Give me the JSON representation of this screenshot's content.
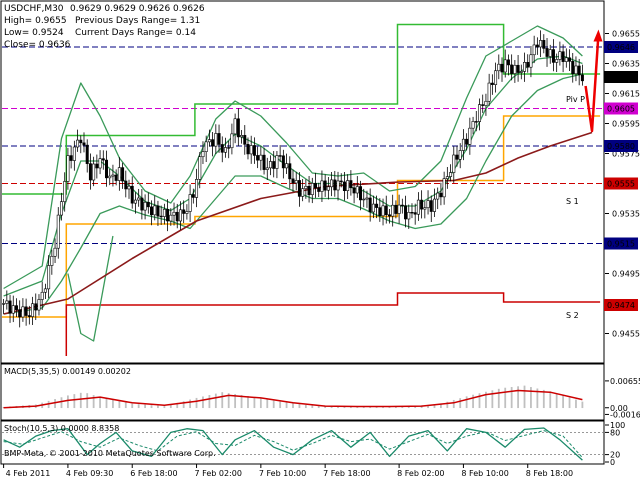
{
  "chart_data": {
    "type": "candlestick",
    "symbol_header": "USDCHF,M30",
    "ohlc_header": "0.9629 0.9629 0.9626 0.9626",
    "info": {
      "high": "High= 0.9655",
      "low": "Low= 0.9524",
      "close": "Close= 0.9636",
      "prev_range": "Previous Days Range= 1.31",
      "curr_range": "Current Days Range= 0.14"
    },
    "price_axis": {
      "ylim": [
        0.9436,
        0.9676
      ],
      "ticks": [
        "0.9655",
        "0.9635",
        "0.9615",
        "0.9595",
        "0.9575",
        "0.9535",
        "0.9495",
        "0.9455"
      ],
      "tick_values": [
        0.9655,
        0.9635,
        0.9615,
        0.9595,
        0.9575,
        0.9535,
        0.9495,
        0.9455
      ]
    },
    "price_labels": [
      {
        "text": "0.9646",
        "value": 0.9646,
        "bg": "#000080"
      },
      {
        "text": "0.9626",
        "value": 0.9626,
        "bg": "#000000"
      },
      {
        "text": "0.9605",
        "value": 0.9605,
        "bg": "#d000d0"
      },
      {
        "text": "0.9580",
        "value": 0.958,
        "bg": "#000080"
      },
      {
        "text": "0.9555",
        "value": 0.9555,
        "bg": "#cc0000"
      },
      {
        "text": "0.9515",
        "value": 0.9515,
        "bg": "#000080"
      },
      {
        "text": "0.9474",
        "value": 0.9474,
        "bg": "#cc0000"
      }
    ],
    "hlines": [
      {
        "value": 0.9646,
        "color": "#000080"
      },
      {
        "value": 0.9605,
        "color": "#d000d0"
      },
      {
        "value": 0.958,
        "color": "#000080"
      },
      {
        "value": 0.9555,
        "color": "#cc0000"
      },
      {
        "value": 0.9515,
        "color": "#000080"
      }
    ],
    "pivot_labels": [
      "Piv P",
      "S 1",
      "S 2"
    ],
    "levels": [
      {
        "name": "green-upper",
        "color": "#33bb33",
        "steps": [
          [
            0,
            0.9548
          ],
          [
            20,
            0.9548
          ],
          [
            20,
            0.9587
          ],
          [
            60,
            0.9587
          ],
          [
            60,
            0.9608
          ],
          [
            123,
            0.9608
          ],
          [
            123,
            0.9661
          ],
          [
            156,
            0.9661
          ],
          [
            156,
            0.9628
          ],
          [
            186,
            0.9628
          ]
        ]
      },
      {
        "name": "orange",
        "color": "#ffa500",
        "steps": [
          [
            0,
            0.9466
          ],
          [
            20,
            0.9466
          ],
          [
            20,
            0.9528
          ],
          [
            60,
            0.9528
          ],
          [
            60,
            0.9533
          ],
          [
            123,
            0.9533
          ],
          [
            123,
            0.9557
          ],
          [
            156,
            0.9557
          ],
          [
            156,
            0.96
          ],
          [
            186,
            0.96
          ]
        ]
      },
      {
        "name": "red",
        "color": "#cc0000",
        "steps": [
          [
            20,
            0.944
          ],
          [
            20,
            0.9474
          ],
          [
            60,
            0.9474
          ],
          [
            60,
            0.9474
          ],
          [
            123,
            0.9474
          ],
          [
            123,
            0.9482
          ],
          [
            156,
            0.9482
          ],
          [
            156,
            0.9476
          ],
          [
            186,
            0.9476
          ]
        ]
      }
    ],
    "ma_color": "#8b1a1a",
    "band_color": "#3a9a5a",
    "candle_color": "#000000",
    "forecast_color": "#ee0000",
    "macd": {
      "label": "MACD(5,35,5) 0.00149 0.00202",
      "ticks": [
        "0.00655",
        "0.00",
        "-0.00163"
      ],
      "tick_values": [
        0.00655,
        0.0,
        -0.00163
      ],
      "ylim": [
        -0.0025,
        0.0075
      ],
      "signal_color": "#cc0000",
      "hist_color": "#c0c0c0"
    },
    "stoch": {
      "label": "Stoch(10,5,3) 0.0000 8.8358",
      "ticks": [
        "100",
        "80",
        "20",
        "0"
      ],
      "tick_values": [
        100,
        80,
        20,
        0
      ],
      "ylim": [
        0,
        100
      ],
      "main_color": "#1a8a6a",
      "signal_color": "#1a8a6a"
    },
    "x_ticks": [
      "4 Feb 2011",
      "4 Feb 09:30",
      "6 Feb 18:00",
      "7 Feb 02:00",
      "7 Feb 10:00",
      "7 Feb 18:00",
      "8 Feb 02:00",
      "8 Feb 10:00",
      "8 Feb 18:00"
    ],
    "x_tick_index": [
      0,
      20,
      40,
      60,
      80,
      100,
      123,
      143,
      163
    ],
    "bar_count": 181,
    "close_path": [
      [
        0,
        0.9475
      ],
      [
        4,
        0.947
      ],
      [
        8,
        0.9468
      ],
      [
        12,
        0.948
      ],
      [
        16,
        0.9515
      ],
      [
        18,
        0.9545
      ],
      [
        20,
        0.957
      ],
      [
        24,
        0.9586
      ],
      [
        27,
        0.956
      ],
      [
        30,
        0.9572
      ],
      [
        33,
        0.9558
      ],
      [
        36,
        0.9562
      ],
      [
        40,
        0.9545
      ],
      [
        44,
        0.954
      ],
      [
        48,
        0.9535
      ],
      [
        52,
        0.9533
      ],
      [
        56,
        0.9535
      ],
      [
        59,
        0.9548
      ],
      [
        62,
        0.958
      ],
      [
        66,
        0.9585
      ],
      [
        69,
        0.9575
      ],
      [
        72,
        0.9595
      ],
      [
        75,
        0.958
      ],
      [
        78,
        0.9575
      ],
      [
        82,
        0.9565
      ],
      [
        86,
        0.9573
      ],
      [
        89,
        0.956
      ],
      [
        92,
        0.955
      ],
      [
        96,
        0.9552
      ],
      [
        100,
        0.9553
      ],
      [
        104,
        0.9555
      ],
      [
        108,
        0.9553
      ],
      [
        111,
        0.9547
      ],
      [
        114,
        0.954
      ],
      [
        117,
        0.9537
      ],
      [
        120,
        0.9535
      ],
      [
        123,
        0.954
      ],
      [
        126,
        0.9533
      ],
      [
        129,
        0.954
      ],
      [
        133,
        0.954
      ],
      [
        136,
        0.955
      ],
      [
        140,
        0.957
      ],
      [
        144,
        0.9585
      ],
      [
        147,
        0.96
      ],
      [
        150,
        0.9612
      ],
      [
        153,
        0.963
      ],
      [
        156,
        0.9635
      ],
      [
        159,
        0.963
      ],
      [
        162,
        0.9632
      ],
      [
        164,
        0.964
      ],
      [
        166,
        0.965
      ],
      [
        168,
        0.9645
      ],
      [
        171,
        0.9638
      ],
      [
        174,
        0.964
      ],
      [
        177,
        0.9632
      ],
      [
        180,
        0.9626
      ]
    ],
    "ma_path": [
      [
        0,
        0.9468
      ],
      [
        20,
        0.9478
      ],
      [
        40,
        0.9505
      ],
      [
        60,
        0.953
      ],
      [
        80,
        0.9545
      ],
      [
        100,
        0.9553
      ],
      [
        123,
        0.9556
      ],
      [
        140,
        0.9557
      ],
      [
        150,
        0.9562
      ],
      [
        160,
        0.9572
      ],
      [
        170,
        0.958
      ],
      [
        183,
        0.9589
      ]
    ],
    "band_up": [
      [
        0,
        0.9485
      ],
      [
        12,
        0.95
      ],
      [
        18,
        0.9585
      ],
      [
        24,
        0.9622
      ],
      [
        30,
        0.96
      ],
      [
        36,
        0.9572
      ],
      [
        44,
        0.955
      ],
      [
        52,
        0.9542
      ],
      [
        58,
        0.956
      ],
      [
        66,
        0.9598
      ],
      [
        72,
        0.961
      ],
      [
        80,
        0.96
      ],
      [
        88,
        0.9582
      ],
      [
        96,
        0.9562
      ],
      [
        104,
        0.956
      ],
      [
        112,
        0.9562
      ],
      [
        120,
        0.955
      ],
      [
        128,
        0.9553
      ],
      [
        136,
        0.957
      ],
      [
        144,
        0.9612
      ],
      [
        150,
        0.964
      ],
      [
        158,
        0.965
      ],
      [
        166,
        0.966
      ],
      [
        174,
        0.9652
      ],
      [
        180,
        0.964
      ]
    ],
    "band_mid": [
      [
        0,
        0.948
      ],
      [
        12,
        0.949
      ],
      [
        18,
        0.9535
      ],
      [
        24,
        0.957
      ],
      [
        30,
        0.957
      ],
      [
        36,
        0.956
      ],
      [
        44,
        0.9543
      ],
      [
        52,
        0.9537
      ],
      [
        58,
        0.9545
      ],
      [
        66,
        0.9575
      ],
      [
        72,
        0.9588
      ],
      [
        80,
        0.958
      ],
      [
        88,
        0.9567
      ],
      [
        96,
        0.9555
      ],
      [
        104,
        0.9555
      ],
      [
        112,
        0.955
      ],
      [
        120,
        0.954
      ],
      [
        128,
        0.954
      ],
      [
        136,
        0.955
      ],
      [
        144,
        0.9578
      ],
      [
        150,
        0.9605
      ],
      [
        158,
        0.9625
      ],
      [
        166,
        0.9638
      ],
      [
        174,
        0.964
      ],
      [
        180,
        0.9635
      ]
    ],
    "band_lo": [
      [
        0,
        0.9468
      ],
      [
        12,
        0.9472
      ],
      [
        18,
        0.949
      ],
      [
        24,
        0.9512
      ],
      [
        30,
        0.9535
      ],
      [
        36,
        0.954
      ],
      [
        44,
        0.9534
      ],
      [
        52,
        0.953
      ],
      [
        58,
        0.9525
      ],
      [
        66,
        0.9545
      ],
      [
        72,
        0.956
      ],
      [
        80,
        0.956
      ],
      [
        88,
        0.9552
      ],
      [
        96,
        0.9545
      ],
      [
        104,
        0.9545
      ],
      [
        112,
        0.9538
      ],
      [
        120,
        0.953
      ],
      [
        128,
        0.9525
      ],
      [
        136,
        0.9528
      ],
      [
        144,
        0.9545
      ],
      [
        150,
        0.957
      ],
      [
        158,
        0.96
      ],
      [
        166,
        0.9617
      ],
      [
        174,
        0.9625
      ],
      [
        180,
        0.9628
      ]
    ],
    "band_lo_dip": [
      [
        20,
        0.9495
      ],
      [
        24,
        0.9455
      ],
      [
        28,
        0.945
      ],
      [
        34,
        0.952
      ]
    ],
    "forecast_path": [
      [
        181,
        0.962
      ],
      [
        183,
        0.959
      ],
      [
        185,
        0.9655
      ]
    ],
    "macd_signal": [
      [
        0,
        0.0
      ],
      [
        10,
        0.0004
      ],
      [
        20,
        0.0018
      ],
      [
        30,
        0.0026
      ],
      [
        40,
        0.0012
      ],
      [
        50,
        0.0006
      ],
      [
        60,
        0.0016
      ],
      [
        70,
        0.003
      ],
      [
        80,
        0.0024
      ],
      [
        90,
        0.0012
      ],
      [
        100,
        0.0004
      ],
      [
        110,
        0.0003
      ],
      [
        120,
        0.0003
      ],
      [
        130,
        0.0004
      ],
      [
        140,
        0.0012
      ],
      [
        150,
        0.0032
      ],
      [
        160,
        0.0042
      ],
      [
        170,
        0.0038
      ],
      [
        180,
        0.002
      ]
    ],
    "macd_hist": [
      [
        0,
        0.0002
      ],
      [
        10,
        0.0008
      ],
      [
        20,
        0.003
      ],
      [
        25,
        0.0038
      ],
      [
        30,
        0.0026
      ],
      [
        40,
        0.001
      ],
      [
        50,
        0.0004
      ],
      [
        60,
        0.0024
      ],
      [
        68,
        0.0038
      ],
      [
        75,
        0.003
      ],
      [
        85,
        0.0016
      ],
      [
        95,
        0.0006
      ],
      [
        105,
        0.0004
      ],
      [
        115,
        0.0002
      ],
      [
        125,
        0.0004
      ],
      [
        135,
        0.0008
      ],
      [
        145,
        0.003
      ],
      [
        155,
        0.0048
      ],
      [
        162,
        0.0054
      ],
      [
        170,
        0.004
      ],
      [
        180,
        0.0015
      ]
    ],
    "stoch_main": [
      [
        0,
        60
      ],
      [
        5,
        40
      ],
      [
        10,
        70
      ],
      [
        15,
        85
      ],
      [
        20,
        90
      ],
      [
        26,
        20
      ],
      [
        30,
        50
      ],
      [
        35,
        80
      ],
      [
        40,
        30
      ],
      [
        46,
        15
      ],
      [
        52,
        80
      ],
      [
        57,
        90
      ],
      [
        62,
        85
      ],
      [
        68,
        20
      ],
      [
        72,
        60
      ],
      [
        78,
        85
      ],
      [
        84,
        40
      ],
      [
        90,
        20
      ],
      [
        96,
        60
      ],
      [
        102,
        85
      ],
      [
        108,
        40
      ],
      [
        114,
        80
      ],
      [
        120,
        15
      ],
      [
        126,
        70
      ],
      [
        132,
        85
      ],
      [
        138,
        30
      ],
      [
        144,
        90
      ],
      [
        150,
        80
      ],
      [
        156,
        40
      ],
      [
        162,
        88
      ],
      [
        168,
        92
      ],
      [
        173,
        60
      ],
      [
        180,
        5
      ]
    ],
    "stoch_signal": [
      [
        0,
        55
      ],
      [
        6,
        48
      ],
      [
        12,
        65
      ],
      [
        18,
        82
      ],
      [
        24,
        55
      ],
      [
        30,
        40
      ],
      [
        36,
        65
      ],
      [
        42,
        45
      ],
      [
        48,
        30
      ],
      [
        54,
        70
      ],
      [
        60,
        82
      ],
      [
        66,
        50
      ],
      [
        72,
        45
      ],
      [
        78,
        72
      ],
      [
        84,
        55
      ],
      [
        90,
        32
      ],
      [
        96,
        50
      ],
      [
        102,
        72
      ],
      [
        108,
        55
      ],
      [
        114,
        62
      ],
      [
        120,
        35
      ],
      [
        126,
        55
      ],
      [
        132,
        75
      ],
      [
        138,
        50
      ],
      [
        144,
        70
      ],
      [
        150,
        82
      ],
      [
        156,
        58
      ],
      [
        162,
        72
      ],
      [
        168,
        85
      ],
      [
        174,
        70
      ],
      [
        180,
        12
      ]
    ],
    "credit": "BMP-Meta, © 2001-2010 MetaQuotes Software Corp."
  }
}
